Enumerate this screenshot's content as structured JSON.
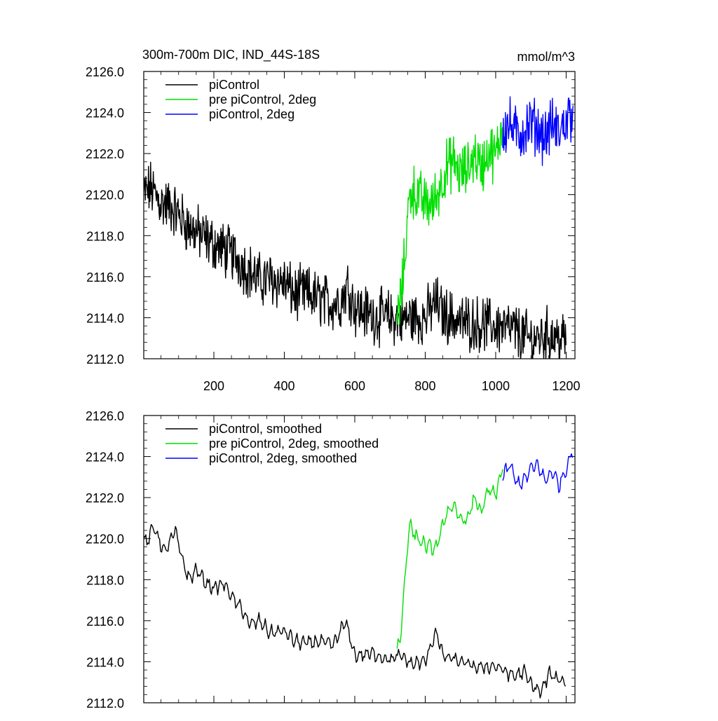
{
  "title_left": "300m-700m DIC, IND_44S-18S",
  "title_right": "mmol/m^3",
  "colors": {
    "piControl": "#000000",
    "pre_piControl_2deg": "#00e000",
    "piControl_2deg": "#0000ff"
  },
  "chart_data": [
    {
      "type": "line",
      "title": "300m-700m DIC, IND_44S-18S",
      "units": "mmol/m^3",
      "xlim": [
        1,
        1225
      ],
      "ylim": [
        2112.0,
        2126.0
      ],
      "x_ticks": [
        200,
        400,
        600,
        800,
        1000,
        1200
      ],
      "x_tick_labels": [
        "200",
        "400",
        "600",
        "800",
        "1000",
        "1200"
      ],
      "y_ticks": [
        2112.0,
        2114.0,
        2116.0,
        2118.0,
        2120.0,
        2122.0,
        2124.0,
        2126.0
      ],
      "y_tick_labels": [
        "2112.0",
        "2114.0",
        "2116.0",
        "2118.0",
        "2120.0",
        "2122.0",
        "2124.0",
        "2126.0"
      ],
      "legend_placement": "top-left",
      "series": [
        {
          "name": "piControl",
          "color": "#000000",
          "x": [
            1,
            20,
            50,
            80,
            100,
            130,
            150,
            180,
            200,
            230,
            260,
            300,
            330,
            360,
            400,
            430,
            460,
            500,
            530,
            560,
            580,
            600,
            650,
            700,
            730,
            760,
            800,
            830,
            850,
            900,
            950,
            1000,
            1050,
            1100,
            1150,
            1200
          ],
          "y": [
            2120.0,
            2120.3,
            2119.6,
            2119.4,
            2119.0,
            2118.4,
            2118.2,
            2117.8,
            2117.6,
            2117.3,
            2117.0,
            2116.3,
            2115.8,
            2115.9,
            2115.7,
            2115.1,
            2115.2,
            2114.9,
            2114.7,
            2114.8,
            2115.6,
            2114.5,
            2114.1,
            2114.0,
            2113.9,
            2114.0,
            2114.0,
            2114.8,
            2114.2,
            2113.8,
            2113.7,
            2113.6,
            2113.4,
            2112.9,
            2113.2,
            2112.9
          ]
        },
        {
          "name": "pre piControl, 2deg",
          "color": "#00e000",
          "x": [
            720,
            730,
            740,
            750,
            760,
            780,
            800,
            820,
            840,
            860,
            880,
            900,
            920,
            940,
            960,
            980,
            1000,
            1020
          ],
          "y": [
            2114.0,
            2114.8,
            2116.5,
            2119.0,
            2120.3,
            2119.9,
            2119.6,
            2119.5,
            2120.3,
            2121.3,
            2121.6,
            2121.0,
            2121.2,
            2122.0,
            2121.3,
            2122.2,
            2121.8,
            2123.5
          ]
        },
        {
          "name": "piControl, 2deg",
          "color": "#0000ff",
          "x": [
            1020,
            1040,
            1060,
            1080,
            1100,
            1120,
            1140,
            1160,
            1180,
            1200,
            1220
          ],
          "y": [
            2123.2,
            2123.4,
            2122.9,
            2123.1,
            2123.5,
            2123.2,
            2122.8,
            2123.4,
            2123.0,
            2123.6,
            2124.2
          ]
        }
      ]
    },
    {
      "type": "line",
      "xlim": [
        1,
        1225
      ],
      "ylim": [
        2112.0,
        2126.0
      ],
      "x_ticks": [
        200,
        400,
        600,
        800,
        1000,
        1200
      ],
      "y_ticks": [
        2112.0,
        2114.0,
        2116.0,
        2118.0,
        2120.0,
        2122.0,
        2124.0,
        2126.0
      ],
      "y_tick_labels": [
        "2112.0",
        "2114.0",
        "2116.0",
        "2118.0",
        "2120.0",
        "2122.0",
        "2124.0",
        "2126.0"
      ],
      "legend_placement": "top-left",
      "series": [
        {
          "name": "piControl, smoothed",
          "color": "#000000",
          "x": [
            1,
            10,
            30,
            60,
            90,
            110,
            130,
            150,
            180,
            200,
            230,
            260,
            280,
            300,
            330,
            360,
            400,
            430,
            460,
            500,
            540,
            570,
            580,
            600,
            650,
            700,
            730,
            760,
            800,
            830,
            850,
            900,
            950,
            1000,
            1050,
            1080,
            1100,
            1130,
            1150,
            1200
          ],
          "y": [
            2120.0,
            2119.8,
            2120.6,
            2119.3,
            2120.4,
            2119.0,
            2118.0,
            2118.5,
            2117.8,
            2117.6,
            2117.8,
            2116.9,
            2116.6,
            2115.8,
            2116.0,
            2115.4,
            2115.5,
            2115.0,
            2114.9,
            2115.0,
            2114.8,
            2115.9,
            2115.6,
            2114.3,
            2114.4,
            2114.1,
            2114.3,
            2113.9,
            2114.0,
            2115.5,
            2114.3,
            2114.0,
            2113.7,
            2113.8,
            2113.3,
            2113.5,
            2112.9,
            2112.5,
            2113.4,
            2113.0
          ]
        },
        {
          "name": "pre piControl, 2deg, smoothed",
          "color": "#00e000",
          "x": [
            720,
            730,
            740,
            750,
            755,
            770,
            790,
            810,
            830,
            845,
            860,
            880,
            900,
            920,
            940,
            960,
            980,
            1000,
            1010,
            1020
          ],
          "y": [
            2114.6,
            2115.2,
            2117.5,
            2119.8,
            2120.7,
            2120.2,
            2119.8,
            2119.6,
            2119.5,
            2120.3,
            2121.3,
            2121.5,
            2121.0,
            2120.9,
            2122.0,
            2121.3,
            2122.4,
            2122.1,
            2122.8,
            2123.6
          ]
        },
        {
          "name": "piControl, 2deg, smoothed",
          "color": "#0000ff",
          "x": [
            1020,
            1040,
            1060,
            1080,
            1100,
            1120,
            1140,
            1160,
            1180,
            1200,
            1215,
            1220
          ],
          "y": [
            2123.0,
            2123.6,
            2122.7,
            2122.8,
            2123.4,
            2123.6,
            2122.8,
            2123.3,
            2122.6,
            2123.4,
            2124.2,
            2124.4
          ]
        }
      ]
    }
  ]
}
